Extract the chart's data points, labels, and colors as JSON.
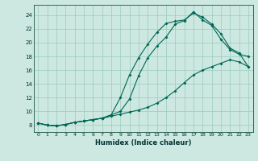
{
  "title": "",
  "xlabel": "Humidex (Indice chaleur)",
  "bg_color": "#cce8e0",
  "grid_color": "#99ccbb",
  "line_color": "#006655",
  "xlim": [
    -0.5,
    23.5
  ],
  "ylim": [
    7.0,
    25.5
  ],
  "xticks": [
    0,
    1,
    2,
    3,
    4,
    5,
    6,
    7,
    8,
    9,
    10,
    11,
    12,
    13,
    14,
    15,
    16,
    17,
    18,
    19,
    20,
    21,
    22,
    23
  ],
  "yticks": [
    8,
    10,
    12,
    14,
    16,
    18,
    20,
    22,
    24
  ],
  "line1_x": [
    0,
    1,
    2,
    3,
    4,
    5,
    6,
    7,
    8,
    9,
    10,
    11,
    12,
    13,
    14,
    15,
    16,
    17,
    18,
    19,
    20,
    21,
    22,
    23
  ],
  "line1_y": [
    8.3,
    8.0,
    7.9,
    8.1,
    8.4,
    8.6,
    8.8,
    9.0,
    9.3,
    9.6,
    9.9,
    10.2,
    10.6,
    11.2,
    12.0,
    13.0,
    14.2,
    15.3,
    16.0,
    16.5,
    17.0,
    17.5,
    17.2,
    16.5
  ],
  "line2_x": [
    0,
    1,
    2,
    3,
    4,
    5,
    6,
    7,
    8,
    9,
    10,
    11,
    12,
    13,
    14,
    15,
    16,
    17,
    18,
    19,
    20,
    21,
    22,
    23
  ],
  "line2_y": [
    8.3,
    8.0,
    7.9,
    8.1,
    8.4,
    8.6,
    8.8,
    9.0,
    9.5,
    10.0,
    11.8,
    15.2,
    17.8,
    19.5,
    20.8,
    22.7,
    23.2,
    24.5,
    23.3,
    22.5,
    20.5,
    19.0,
    18.3,
    18.0
  ],
  "line3_x": [
    0,
    1,
    2,
    3,
    4,
    5,
    6,
    7,
    8,
    9,
    10,
    11,
    12,
    13,
    14,
    15,
    16,
    17,
    18,
    19,
    20,
    21,
    22,
    23
  ],
  "line3_y": [
    8.3,
    8.0,
    7.9,
    8.1,
    8.4,
    8.6,
    8.8,
    9.0,
    9.5,
    12.0,
    15.3,
    17.8,
    19.8,
    21.5,
    22.8,
    23.1,
    23.3,
    24.3,
    23.7,
    22.7,
    21.3,
    19.2,
    18.5,
    16.5
  ]
}
